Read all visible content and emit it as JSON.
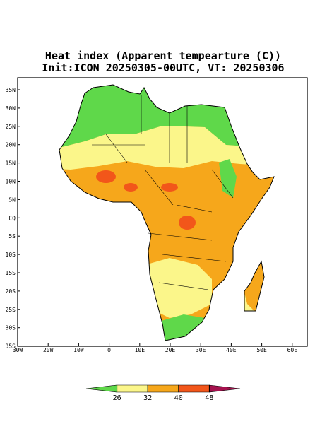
{
  "title": "Heat index (Apparent tempearture (C))",
  "subtitle": "Init:ICON 20250305-00UTC, VT: 20250306",
  "x_labels": [
    "30W",
    "20W",
    "10W",
    "0",
    "10E",
    "20E",
    "30E",
    "40E",
    "50E",
    "60E"
  ],
  "y_labels": [
    "35N",
    "30N",
    "25N",
    "20N",
    "15N",
    "10N",
    "5N",
    "EQ",
    "5S",
    "10S",
    "15S",
    "20S",
    "25S",
    "30S",
    "35S"
  ],
  "colorbar": {
    "ticks": [
      26,
      32,
      40,
      48
    ],
    "colors": [
      "#5fd84a",
      "#fbf68a",
      "#f6a71b",
      "#f2561a",
      "#a5124e"
    ]
  }
}
